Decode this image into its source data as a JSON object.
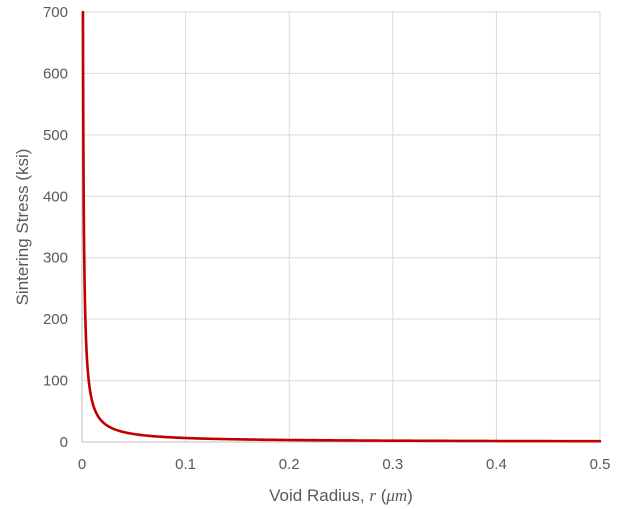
{
  "chart_data": {
    "type": "line",
    "title": "",
    "xlabel": "Void Radius, r (μm)",
    "xlabel_parts": [
      "Void Radius, ",
      "r",
      " (",
      "μm",
      ")"
    ],
    "ylabel": "Sintering Stress (ksi)",
    "xlim": [
      0,
      0.5
    ],
    "ylim": [
      0,
      700
    ],
    "x_ticks": [
      "0",
      "0.1",
      "0.2",
      "0.3",
      "0.4",
      "0.5"
    ],
    "y_ticks": [
      "0",
      "100",
      "200",
      "300",
      "400",
      "500",
      "600",
      "700"
    ],
    "grid": true,
    "legend": "none",
    "series": [
      {
        "color": "#c00000",
        "x": [
          0.001,
          0.002,
          0.004,
          0.006,
          0.008,
          0.01,
          0.015,
          0.02,
          0.03,
          0.05,
          0.1,
          0.2,
          0.3,
          0.4,
          0.5
        ],
        "y": [
          650,
          325,
          162.5,
          108,
          81,
          65,
          43,
          32.5,
          21.7,
          13,
          6.5,
          3.3,
          2.2,
          1.6,
          1.3
        ]
      }
    ]
  }
}
